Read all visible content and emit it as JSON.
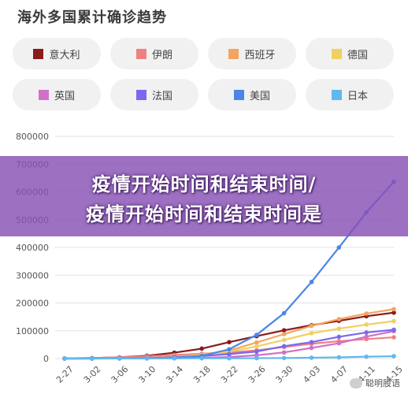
{
  "title": "海外多国累计确诊趋势",
  "banner": {
    "line1": "疫情开始时间和结束时间/",
    "line2": "疫情开始时间和结束时间是"
  },
  "watermark": "聪明股语",
  "chart_data": {
    "type": "line",
    "title": "海外多国累计确诊趋势",
    "xlabel": "",
    "ylabel": "",
    "ylim": [
      0,
      800000
    ],
    "yticks": [
      0,
      100000,
      200000,
      300000,
      400000,
      500000,
      600000,
      700000,
      800000
    ],
    "categories": [
      "2-27",
      "3-02",
      "3-06",
      "3-10",
      "3-14",
      "3-18",
      "3-22",
      "3-26",
      "3-30",
      "4-03",
      "4-07",
      "4-11",
      "4-15"
    ],
    "legend_position": "top",
    "grid": "horizontal",
    "series": [
      {
        "name": "意大利",
        "color": "#8b1a1a",
        "values": [
          650,
          1700,
          4600,
          10150,
          21150,
          35700,
          59100,
          80600,
          101700,
          119800,
          135600,
          152300,
          165200
        ]
      },
      {
        "name": "伊朗",
        "color": "#f08080",
        "values": [
          388,
          1500,
          4750,
          8000,
          12700,
          17360,
          21640,
          29400,
          41500,
          53200,
          62600,
          70000,
          76400
        ]
      },
      {
        "name": "西班牙",
        "color": "#f4a460",
        "values": [
          32,
          120,
          400,
          1700,
          6400,
          13900,
          28600,
          57800,
          87950,
          117700,
          141900,
          161850,
          177600
        ]
      },
      {
        "name": "德国",
        "color": "#f0d060",
        "values": [
          50,
          160,
          670,
          1460,
          4600,
          12300,
          24900,
          43900,
          66900,
          91100,
          107600,
          122200,
          134800
        ]
      },
      {
        "name": "英国",
        "color": "#d070c8",
        "values": [
          20,
          40,
          160,
          380,
          1140,
          2700,
          5700,
          11700,
          22100,
          38200,
          55200,
          78900,
          98500
        ]
      },
      {
        "name": "法国",
        "color": "#7b68ee",
        "values": [
          60,
          190,
          420,
          1780,
          4500,
          9100,
          16000,
          25200,
          44550,
          59100,
          78200,
          93800,
          103600
        ]
      },
      {
        "name": "美国",
        "color": "#4a86e8",
        "values": [
          60,
          100,
          320,
          960,
          2950,
          9400,
          33300,
          85400,
          163400,
          275600,
          399900,
          526400,
          636300
        ]
      },
      {
        "name": "日本",
        "color": "#60b8f0",
        "values": [
          210,
          250,
          380,
          580,
          780,
          870,
          1100,
          1300,
          1900,
          3000,
          4300,
          6700,
          8400
        ]
      }
    ]
  }
}
